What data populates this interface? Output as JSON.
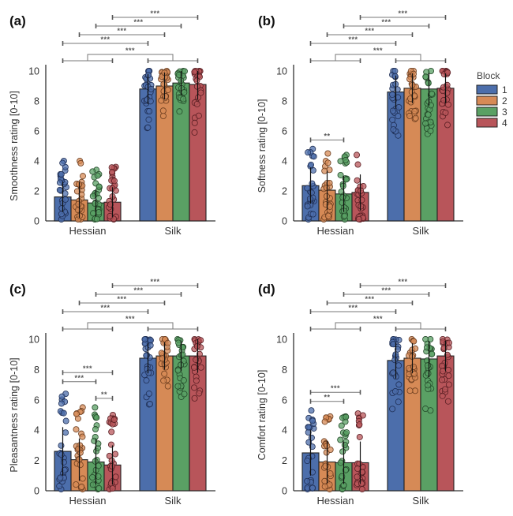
{
  "figure": {
    "legend": {
      "title": "Block",
      "placement": "right of panel (b)",
      "entries": [
        {
          "label": "1",
          "color": "#4c6eab"
        },
        {
          "label": "2",
          "color": "#d68a56"
        },
        {
          "label": "3",
          "color": "#5aa064"
        },
        {
          "label": "4",
          "color": "#b8555a"
        }
      ]
    }
  },
  "chart_data": [
    {
      "type": "bar",
      "panel": "(a)",
      "title": "",
      "xlabel": "",
      "ylabel": "Smoothness rating [0-10]",
      "ylim": [
        0,
        10
      ],
      "yticks": [
        "0",
        "2",
        "4",
        "6",
        "8",
        "10"
      ],
      "categories": [
        "Hessian",
        "Silk"
      ],
      "series": [
        {
          "name": "1",
          "values": [
            1.6,
            8.8
          ],
          "sd": [
            1.0,
            1.0
          ],
          "points_range": [
            [
              0.1,
              4.0
            ],
            [
              6.2,
              10.0
            ]
          ]
        },
        {
          "name": "2",
          "values": [
            1.4,
            9.0
          ],
          "sd": [
            1.2,
            0.9
          ],
          "points_range": [
            [
              0.1,
              4.0
            ],
            [
              7.0,
              10.0
            ]
          ]
        },
        {
          "name": "3",
          "values": [
            1.2,
            9.2
          ],
          "sd": [
            0.9,
            0.8
          ],
          "points_range": [
            [
              0.1,
              3.4
            ],
            [
              7.3,
              10.0
            ]
          ]
        },
        {
          "name": "4",
          "values": [
            1.25,
            9.1
          ],
          "sd": [
            1.0,
            1.0
          ],
          "points_range": [
            [
              0.1,
              3.6
            ],
            [
              5.9,
              10.0
            ]
          ]
        }
      ],
      "significance": [
        {
          "from": [
            "Hessian",
            "1"
          ],
          "to": [
            "Silk",
            "4"
          ],
          "row": 1,
          "label": "***",
          "from_bar": 3,
          "to_bar": 7
        },
        {
          "from_bar": 2,
          "to_bar": 6,
          "row": 2,
          "label": "***"
        },
        {
          "from_bar": 1,
          "to_bar": 5,
          "row": 3,
          "label": "***"
        },
        {
          "from_bar": 0,
          "to_bar": 4,
          "row": 4,
          "label": "***"
        },
        {
          "type": "group",
          "groups": [
            "Hessian",
            "Silk"
          ],
          "row": 5,
          "label": "***"
        }
      ],
      "within_group_significance": []
    },
    {
      "type": "bar",
      "panel": "(b)",
      "title": "",
      "xlabel": "",
      "ylabel": "Softness rating [0-10]",
      "ylim": [
        0,
        10
      ],
      "yticks": [
        "0",
        "2",
        "4",
        "6",
        "8",
        "10"
      ],
      "categories": [
        "Hessian",
        "Silk"
      ],
      "series": [
        {
          "name": "1",
          "values": [
            2.35,
            8.6
          ],
          "sd": [
            1.2,
            1.1
          ],
          "points_range": [
            [
              0.1,
              4.8
            ],
            [
              5.7,
              10.0
            ]
          ]
        },
        {
          "name": "2",
          "values": [
            2.05,
            8.85
          ],
          "sd": [
            1.3,
            1.0
          ],
          "points_range": [
            [
              0.1,
              4.5
            ],
            [
              6.8,
              10.0
            ]
          ]
        },
        {
          "name": "3",
          "values": [
            1.8,
            8.8
          ],
          "sd": [
            1.2,
            1.1
          ],
          "points_range": [
            [
              0.1,
              4.4
            ],
            [
              5.8,
              10.0
            ]
          ]
        },
        {
          "name": "4",
          "values": [
            1.9,
            8.85
          ],
          "sd": [
            1.2,
            1.0
          ],
          "points_range": [
            [
              0.1,
              4.4
            ],
            [
              6.4,
              10.0
            ]
          ]
        }
      ],
      "significance": [
        {
          "from_bar": 3,
          "to_bar": 7,
          "row": 1,
          "label": "***"
        },
        {
          "from_bar": 2,
          "to_bar": 6,
          "row": 2,
          "label": "***"
        },
        {
          "from_bar": 1,
          "to_bar": 5,
          "row": 3,
          "label": "***"
        },
        {
          "from_bar": 0,
          "to_bar": 4,
          "row": 4,
          "label": "***"
        },
        {
          "type": "group",
          "groups": [
            "Hessian",
            "Silk"
          ],
          "row": 5,
          "label": "***"
        }
      ],
      "within_group_significance": [
        {
          "from_bar": 0,
          "to_bar": 2,
          "y": 5.4,
          "label": "**"
        }
      ]
    },
    {
      "type": "bar",
      "panel": "(c)",
      "title": "",
      "xlabel": "",
      "ylabel": "Pleasantness rating [0-10]",
      "ylim": [
        0,
        10
      ],
      "yticks": [
        "0",
        "2",
        "4",
        "6",
        "8",
        "10"
      ],
      "categories": [
        "Hessian",
        "Silk"
      ],
      "series": [
        {
          "name": "1",
          "values": [
            2.6,
            8.75
          ],
          "sd": [
            1.6,
            1.0
          ],
          "points_range": [
            [
              0.1,
              6.4
            ],
            [
              5.7,
              10.0
            ]
          ]
        },
        {
          "name": "2",
          "values": [
            2.05,
            8.9
          ],
          "sd": [
            1.4,
            0.9
          ],
          "points_range": [
            [
              0.1,
              5.5
            ],
            [
              6.9,
              10.0
            ]
          ]
        },
        {
          "name": "3",
          "values": [
            1.9,
            8.9
          ],
          "sd": [
            1.5,
            1.0
          ],
          "points_range": [
            [
              0.1,
              5.5
            ],
            [
              6.2,
              10.0
            ]
          ]
        },
        {
          "name": "4",
          "values": [
            1.7,
            8.9
          ],
          "sd": [
            1.3,
            1.1
          ],
          "points_range": [
            [
              0.1,
              5.0
            ],
            [
              6.1,
              10.0
            ]
          ]
        }
      ],
      "significance": [
        {
          "from_bar": 3,
          "to_bar": 7,
          "row": 1,
          "label": "***"
        },
        {
          "from_bar": 2,
          "to_bar": 6,
          "row": 2,
          "label": "***"
        },
        {
          "from_bar": 1,
          "to_bar": 5,
          "row": 3,
          "label": "***"
        },
        {
          "from_bar": 0,
          "to_bar": 4,
          "row": 4,
          "label": "***"
        },
        {
          "type": "group",
          "groups": [
            "Hessian",
            "Silk"
          ],
          "row": 5,
          "label": "***"
        }
      ],
      "within_group_significance": [
        {
          "from_bar": 0,
          "to_bar": 3,
          "y": 7.8,
          "label": "***"
        },
        {
          "from_bar": 0,
          "to_bar": 2,
          "y": 7.2,
          "label": "***"
        },
        {
          "from_bar": 2,
          "to_bar": 3,
          "y": 6.1,
          "label": "**"
        }
      ]
    },
    {
      "type": "bar",
      "panel": "(d)",
      "title": "",
      "xlabel": "",
      "ylabel": "Comfort rating [0-10]",
      "ylim": [
        0,
        10
      ],
      "yticks": [
        "0",
        "2",
        "4",
        "6",
        "8",
        "10"
      ],
      "categories": [
        "Hessian",
        "Silk"
      ],
      "series": [
        {
          "name": "1",
          "values": [
            2.5,
            8.6
          ],
          "sd": [
            1.5,
            1.2
          ],
          "points_range": [
            [
              0.1,
              5.3
            ],
            [
              5.4,
              10.0
            ]
          ]
        },
        {
          "name": "2",
          "values": [
            1.9,
            8.75
          ],
          "sd": [
            1.4,
            1.0
          ],
          "points_range": [
            [
              0.1,
              4.9
            ],
            [
              6.6,
              10.0
            ]
          ]
        },
        {
          "name": "3",
          "values": [
            1.85,
            8.7
          ],
          "sd": [
            1.4,
            1.2
          ],
          "points_range": [
            [
              0.1,
              4.9
            ],
            [
              5.3,
              10.0
            ]
          ]
        },
        {
          "name": "4",
          "values": [
            1.85,
            8.9
          ],
          "sd": [
            1.4,
            1.0
          ],
          "points_range": [
            [
              0.1,
              5.1
            ],
            [
              5.9,
              10.0
            ]
          ]
        }
      ],
      "significance": [
        {
          "from_bar": 3,
          "to_bar": 7,
          "row": 1,
          "label": "***"
        },
        {
          "from_bar": 2,
          "to_bar": 6,
          "row": 2,
          "label": "***"
        },
        {
          "from_bar": 1,
          "to_bar": 5,
          "row": 3,
          "label": "***"
        },
        {
          "from_bar": 0,
          "to_bar": 4,
          "row": 4,
          "label": "***"
        },
        {
          "type": "group",
          "groups": [
            "Hessian",
            "Silk"
          ],
          "row": 5,
          "label": "***"
        }
      ],
      "within_group_significance": [
        {
          "from_bar": 0,
          "to_bar": 3,
          "y": 6.5,
          "label": "***"
        },
        {
          "from_bar": 0,
          "to_bar": 2,
          "y": 5.9,
          "label": "**"
        }
      ]
    }
  ]
}
